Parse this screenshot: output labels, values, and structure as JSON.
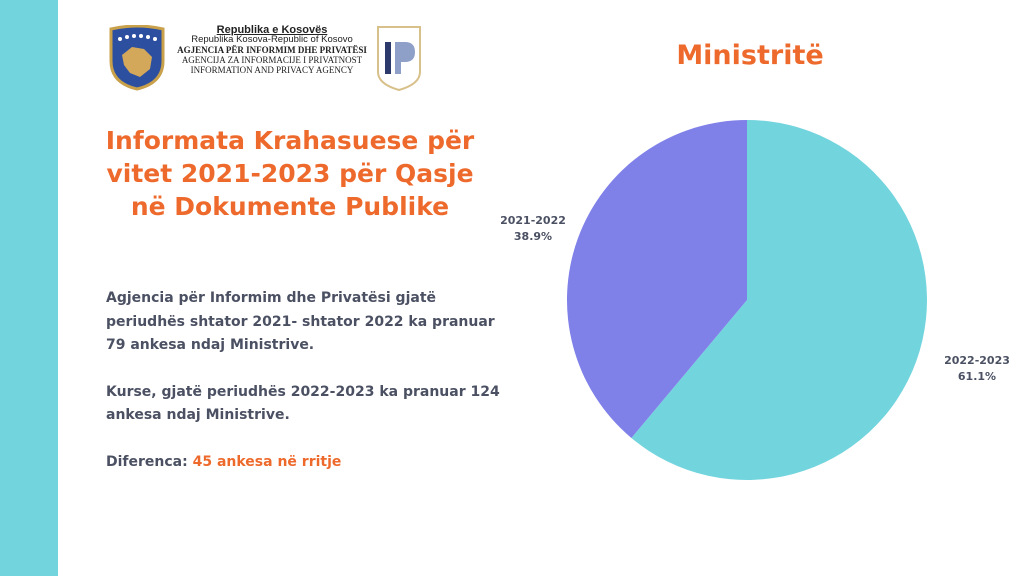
{
  "header": {
    "line1": "Republika e Kosovës",
    "line2": "Republika Kosova-Republic of Kosovo",
    "line3": "AGJENCIA PËR INFORMIM DHE PRIVATËSI",
    "line4": "AGENCIJA ZA INFORMACIJE I PRIVATNOST",
    "line5": "INFORMATION AND PRIVACY AGENCY",
    "logo_text": "IP"
  },
  "title": "Informata Krahasuese për vitet 2021-2023 për Qasje në Dokumente Publike",
  "body": {
    "p1": "Agjencia për Informim dhe Privatësi gjatë periudhës shtator 2021- shtator 2022 ka pranuar 79 ankesa ndaj Ministrive.",
    "p2": "Kurse, gjatë periudhës 2022-2023 ka pranuar 124 ankesa ndaj Ministrive.",
    "diff_label": "Diferenca:",
    "diff_value": "45 ankesa në rritje"
  },
  "colors": {
    "accent": "#ee6a2c",
    "cyan": "#72d4dd",
    "purple": "#7f80e8"
  },
  "chart_data": {
    "type": "pie",
    "title": "Ministritë",
    "categories": [
      "2022-2023",
      "2021-2022"
    ],
    "values": [
      61.1,
      38.9
    ],
    "labels": [
      "61.1%",
      "38.9%"
    ],
    "colors": [
      "#72d4dd",
      "#7f80e8"
    ],
    "raw_counts": [
      124,
      79
    ]
  }
}
